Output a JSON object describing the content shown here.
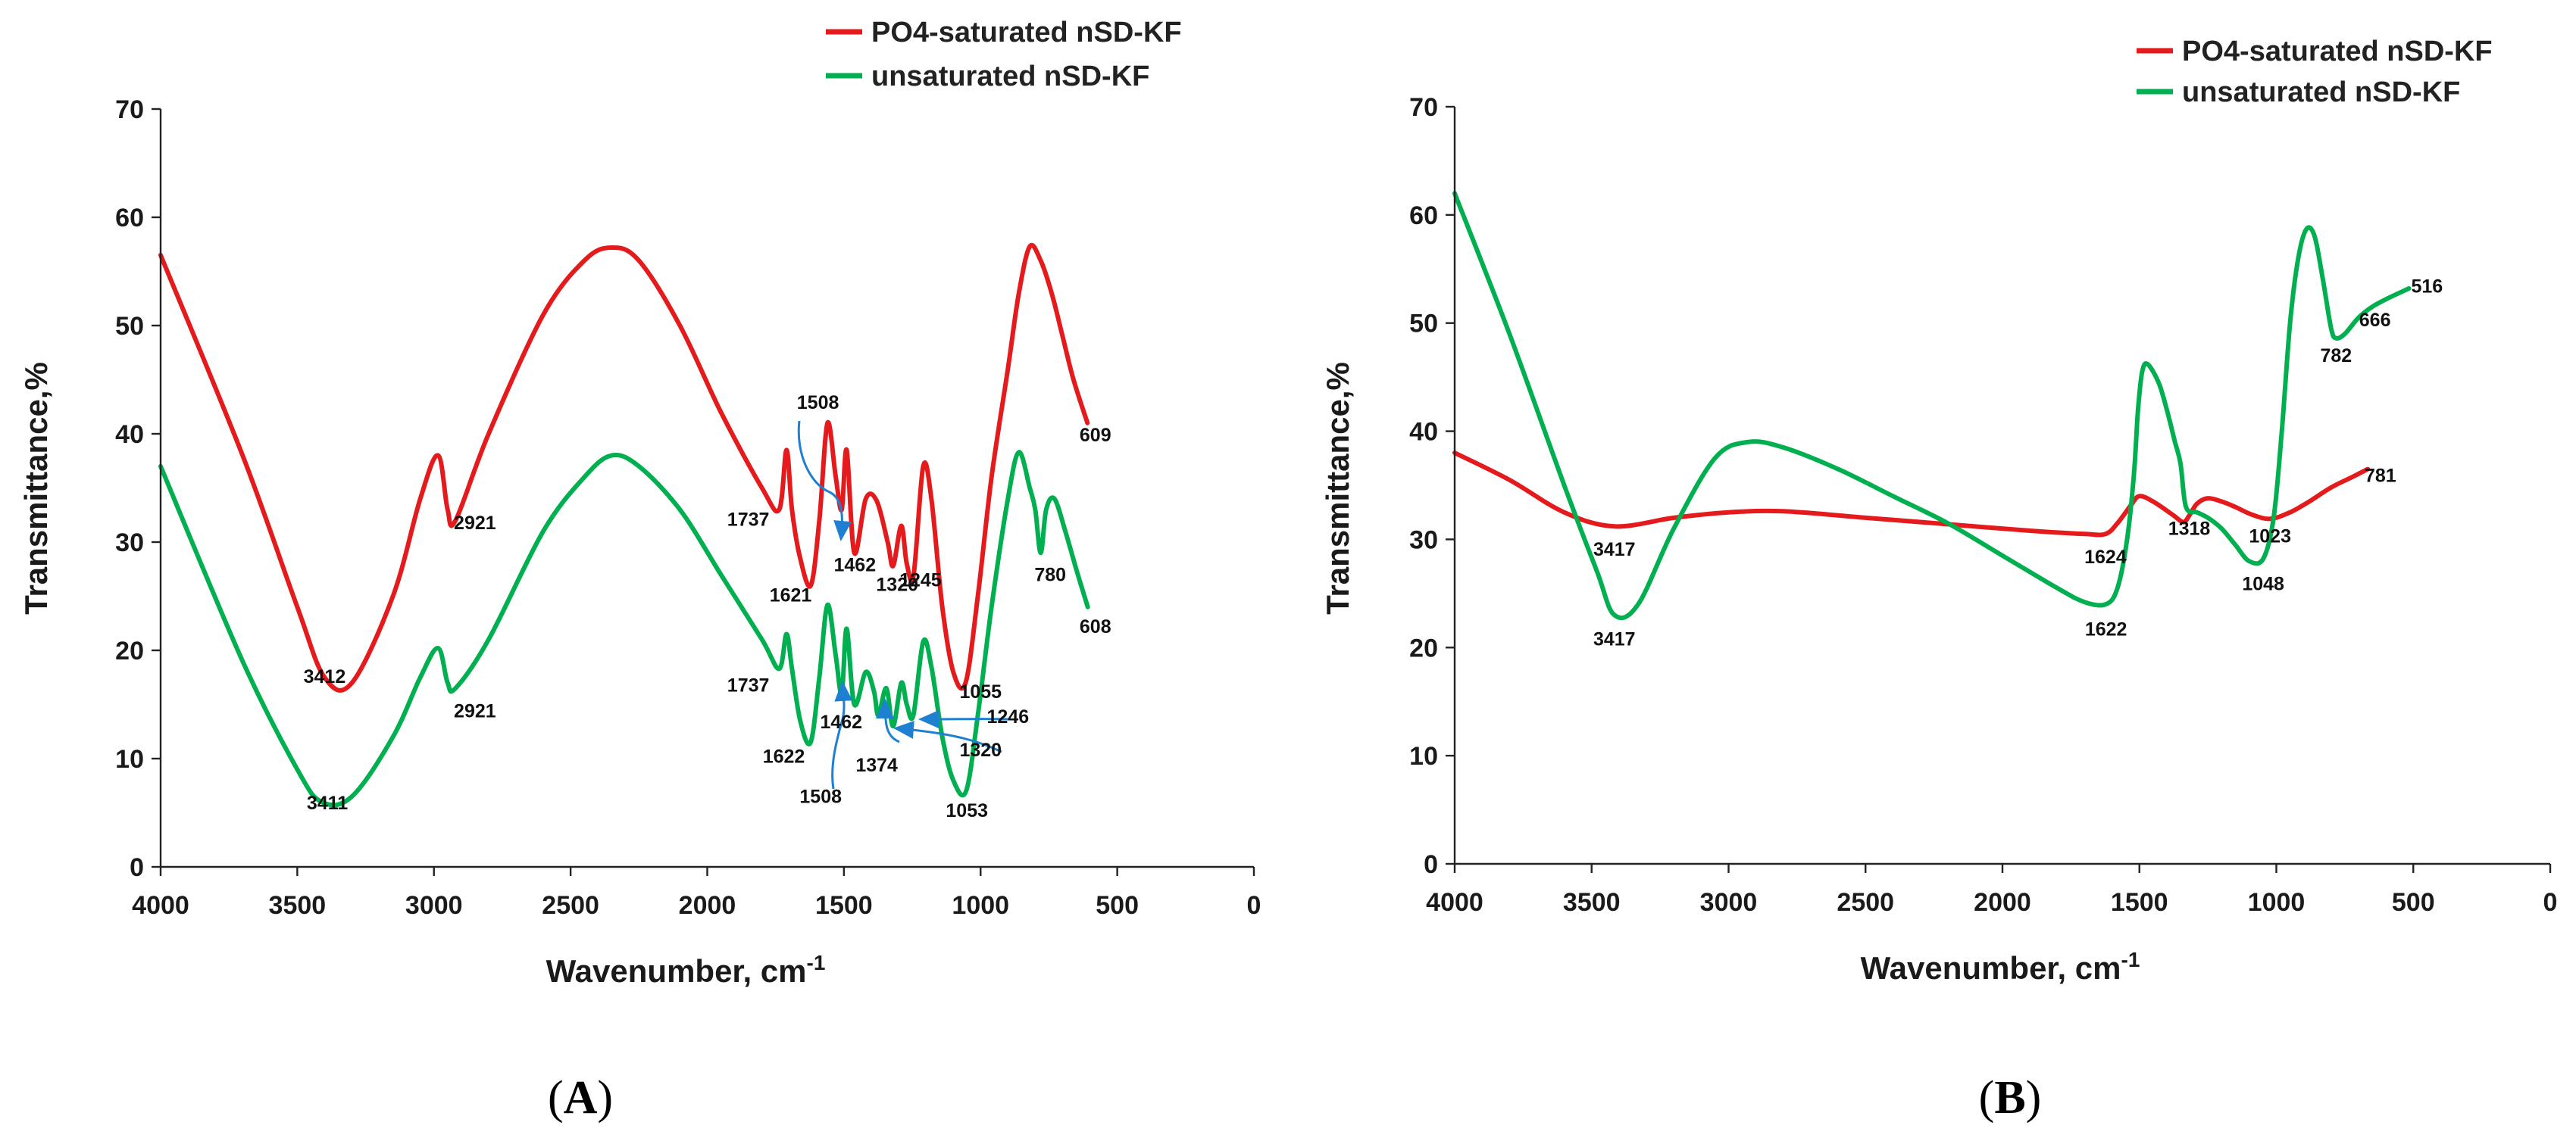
{
  "chart_data": [
    {
      "type": "line",
      "panel": "A",
      "xlabel": "Wavenumber, cm",
      "xlabel_sup": "-1",
      "ylabel": "Transmittance,%",
      "xlim": [
        4000,
        0
      ],
      "ylim": [
        0,
        70
      ],
      "xticks": [
        4000,
        3500,
        3000,
        2500,
        2000,
        1500,
        1000,
        500,
        0
      ],
      "yticks": [
        0,
        10,
        20,
        30,
        40,
        50,
        60,
        70
      ],
      "legend_position": "top-right",
      "series": [
        {
          "name": "PO4-saturated nSD-KF",
          "color": "#e41a1c",
          "x": [
            4000,
            3700,
            3500,
            3400,
            3300,
            3150,
            3050,
            2985,
            2950,
            2921,
            2800,
            2600,
            2450,
            2350,
            2250,
            2100,
            1950,
            1800,
            1737,
            1710,
            1690,
            1660,
            1621,
            1590,
            1560,
            1530,
            1508,
            1490,
            1462,
            1420,
            1380,
            1340,
            1320,
            1290,
            1270,
            1245,
            1210,
            1180,
            1140,
            1100,
            1055,
            1010,
            960,
            900,
            860,
            820,
            780,
            740,
            700,
            660,
            609
          ],
          "y": [
            56.5,
            38,
            24,
            17.5,
            17,
            25,
            34,
            38,
            33,
            32,
            40,
            51,
            56,
            57.2,
            56,
            50,
            42,
            35,
            33,
            38.5,
            33,
            28.5,
            26,
            32,
            41,
            36,
            33,
            38.5,
            29,
            34,
            33.8,
            30,
            27.8,
            31.5,
            28,
            27,
            37,
            34,
            24,
            18,
            17,
            25,
            36,
            46,
            53,
            57.3,
            56,
            53,
            49,
            45,
            41
          ]
        },
        {
          "name": "unsaturated nSD-KF",
          "color": "#00b050",
          "x": [
            4000,
            3700,
            3500,
            3411,
            3300,
            3150,
            3050,
            2985,
            2950,
            2921,
            2800,
            2600,
            2450,
            2350,
            2250,
            2100,
            1950,
            1800,
            1737,
            1710,
            1690,
            1660,
            1622,
            1590,
            1560,
            1530,
            1508,
            1490,
            1462,
            1420,
            1390,
            1374,
            1345,
            1320,
            1290,
            1270,
            1246,
            1210,
            1180,
            1140,
            1100,
            1053,
            1010,
            960,
            900,
            860,
            820,
            800,
            780,
            760,
            730,
            690,
            650,
            608
          ],
          "y": [
            37,
            19,
            9,
            6,
            6.5,
            12,
            17.5,
            20.2,
            17,
            16.5,
            21,
            31,
            36,
            38,
            37,
            33,
            27,
            21,
            18.3,
            21.5,
            18.3,
            13.5,
            11.5,
            17.5,
            24.2,
            19.5,
            16,
            22,
            15,
            18,
            16.2,
            14,
            16.5,
            13,
            17,
            15,
            14,
            20.8,
            18.5,
            12,
            8,
            7,
            14,
            24,
            34,
            38.3,
            35,
            33,
            29,
            33,
            34,
            31,
            27.5,
            24
          ]
        }
      ],
      "annotations": [
        {
          "text": "3412",
          "x": 3400,
          "y": 17
        },
        {
          "text": "2921",
          "x": 2850,
          "y": 31.2
        },
        {
          "text": "1737",
          "x": 1850,
          "y": 31.5
        },
        {
          "text": "1508",
          "x": 1595,
          "y": 42.3
        },
        {
          "text": "1621",
          "x": 1695,
          "y": 24.5
        },
        {
          "text": "1462",
          "x": 1460,
          "y": 27.3
        },
        {
          "text": "1320",
          "x": 1305,
          "y": 25.5
        },
        {
          "text": "1245",
          "x": 1220,
          "y": 25.9
        },
        {
          "text": "1055",
          "x": 1000,
          "y": 15.6
        },
        {
          "text": "609",
          "x": 580,
          "y": 39.3
        },
        {
          "text": "780",
          "x": 745,
          "y": 26.4
        },
        {
          "text": "608",
          "x": 580,
          "y": 21.6
        },
        {
          "text": "3411",
          "x": 3390,
          "y": 5.3
        },
        {
          "text": "2921",
          "x": 2850,
          "y": 13.8
        },
        {
          "text": "1737",
          "x": 1850,
          "y": 16.2
        },
        {
          "text": "1622",
          "x": 1720,
          "y": 9.6
        },
        {
          "text": "1462",
          "x": 1510,
          "y": 12.8
        },
        {
          "text": "1508",
          "x": 1585,
          "y": 5.9
        },
        {
          "text": "1374",
          "x": 1380,
          "y": 8.8
        },
        {
          "text": "1320",
          "x": 1000,
          "y": 10.2
        },
        {
          "text": "1246",
          "x": 900,
          "y": 13.3
        },
        {
          "text": "1053",
          "x": 1050,
          "y": 4.6
        }
      ]
    },
    {
      "type": "line",
      "panel": "B",
      "xlabel": "Wavenumber, cm",
      "xlabel_sup": "-1",
      "ylabel": "Transmittance,%",
      "xlim": [
        4000,
        0
      ],
      "ylim": [
        0,
        70
      ],
      "xticks": [
        4000,
        3500,
        3000,
        2500,
        2000,
        1500,
        1000,
        500,
        0
      ],
      "yticks": [
        0,
        10,
        20,
        30,
        40,
        50,
        60,
        70
      ],
      "legend_position": "top-right",
      "series": [
        {
          "name": "PO4-saturated nSD-KF",
          "color": "#e41a1c",
          "x": [
            4000,
            3800,
            3600,
            3417,
            3200,
            3000,
            2800,
            2500,
            2200,
            1900,
            1700,
            1624,
            1580,
            1530,
            1500,
            1450,
            1380,
            1340,
            1318,
            1290,
            1250,
            1200,
            1150,
            1090,
            1023,
            950,
            880,
            800,
            720,
            666
          ],
          "y": [
            38,
            35.5,
            32.5,
            31.2,
            32,
            32.5,
            32.6,
            32,
            31.4,
            30.8,
            30.5,
            30.5,
            31.5,
            33.2,
            34,
            33.5,
            32.3,
            31.6,
            32.2,
            33.3,
            33.8,
            33.5,
            33,
            32.3,
            31.9,
            32.5,
            33.5,
            34.8,
            35.8,
            36.5
          ]
        },
        {
          "name": "unsaturated nSD-KF",
          "color": "#00b050",
          "x": [
            4000,
            3800,
            3600,
            3480,
            3417,
            3330,
            3200,
            3050,
            2930,
            2800,
            2600,
            2400,
            2200,
            2000,
            1800,
            1700,
            1622,
            1580,
            1545,
            1520,
            1505,
            1490,
            1470,
            1430,
            1400,
            1370,
            1350,
            1330,
            1290,
            1250,
            1200,
            1150,
            1100,
            1048,
            1010,
            980,
            950,
            920,
            890,
            860,
            830,
            800,
            782,
            750,
            700,
            650,
            600,
            550,
            516
          ],
          "y": [
            62,
            49,
            35,
            27,
            23,
            24,
            31,
            37.5,
            39,
            38.5,
            36.5,
            34,
            31.5,
            28.5,
            25.5,
            24.2,
            24,
            25.5,
            30,
            36,
            42,
            45.5,
            46.2,
            44.5,
            42,
            39,
            37,
            33,
            32.5,
            32,
            31,
            29.5,
            28,
            28.2,
            32,
            40,
            50,
            56,
            58.7,
            58,
            54,
            49.5,
            48.6,
            49,
            50.5,
            51.5,
            52.2,
            52.8,
            53.2
          ]
        }
      ],
      "annotations": [
        {
          "text": "3417",
          "x": 3417,
          "y": 28.5
        },
        {
          "text": "3417",
          "x": 3417,
          "y": 20.2
        },
        {
          "text": "1624",
          "x": 1624,
          "y": 27.8
        },
        {
          "text": "1622",
          "x": 1622,
          "y": 21.1
        },
        {
          "text": "1318",
          "x": 1318,
          "y": 30.4
        },
        {
          "text": "1048",
          "x": 1048,
          "y": 25.3
        },
        {
          "text": "1023",
          "x": 1023,
          "y": 29.7
        },
        {
          "text": "781",
          "x": 620,
          "y": 35.3
        },
        {
          "text": "782",
          "x": 782,
          "y": 46.4
        },
        {
          "text": "666",
          "x": 640,
          "y": 49.7
        },
        {
          "text": "516",
          "x": 450,
          "y": 52.8
        }
      ]
    }
  ],
  "figure_labels": [
    {
      "open": "(",
      "letter": "A",
      "close": ")"
    },
    {
      "open": "(",
      "letter": "B",
      "close": ")"
    }
  ]
}
